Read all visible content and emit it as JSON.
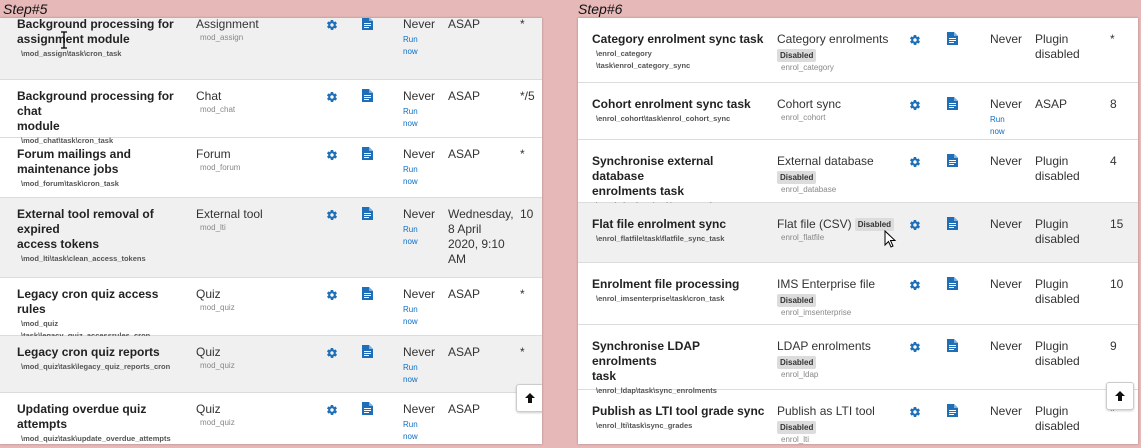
{
  "left": {
    "step": "Step#5",
    "rows": [
      {
        "name": [
          "Background processing for",
          "assignment module"
        ],
        "class": [
          "\\mod_assign\\task\\cron_task"
        ],
        "component": "Assignment",
        "comp_sub": "mod_assign",
        "last": "Never",
        "run_now": "Run now",
        "next": [
          "ASAP"
        ],
        "schedule": "*"
      },
      {
        "name": [
          "Background processing for chat",
          "module"
        ],
        "class": [
          "\\mod_chat\\task\\cron_task"
        ],
        "component": "Chat",
        "comp_sub": "mod_chat",
        "last": "Never",
        "run_now": "Run now",
        "next": [
          "ASAP"
        ],
        "schedule": "*/5"
      },
      {
        "name": [
          "Forum mailings and",
          "maintenance jobs"
        ],
        "class": [
          "\\mod_forum\\task\\cron_task"
        ],
        "component": "Forum",
        "comp_sub": "mod_forum",
        "last": "Never",
        "run_now": "Run now",
        "next": [
          "ASAP"
        ],
        "schedule": "*"
      },
      {
        "name": [
          "External tool removal of expired",
          "access tokens"
        ],
        "class": [
          "\\mod_lti\\task\\clean_access_tokens"
        ],
        "component": "External tool",
        "comp_sub": "mod_lti",
        "last": "Never",
        "run_now": "Run now",
        "next": [
          "Wednesday,",
          "8 April",
          "2020, 9:10",
          "AM"
        ],
        "schedule": "10"
      },
      {
        "name": [
          "Legacy cron quiz access rules"
        ],
        "class": [
          "\\mod_quiz",
          "\\task\\legacy_quiz_accessrules_cron"
        ],
        "component": "Quiz",
        "comp_sub": "mod_quiz",
        "last": "Never",
        "run_now": "Run now",
        "next": [
          "ASAP"
        ],
        "schedule": "*"
      },
      {
        "name": [
          "Legacy cron quiz reports"
        ],
        "class": [
          "\\mod_quiz\\task\\legacy_quiz_reports_cron"
        ],
        "component": "Quiz",
        "comp_sub": "mod_quiz",
        "last": "Never",
        "run_now": "Run now",
        "next": [
          "ASAP"
        ],
        "schedule": "*"
      },
      {
        "name": [
          "Updating overdue quiz attempts"
        ],
        "class": [
          "\\mod_quiz\\task\\update_overdue_attempts"
        ],
        "component": "Quiz",
        "comp_sub": "mod_quiz",
        "last": "Never",
        "run_now": "Run now",
        "next": [
          "ASAP"
        ],
        "schedule": "*"
      }
    ]
  },
  "right": {
    "step": "Step#6",
    "rows": [
      {
        "name": [
          "Category enrolment sync task"
        ],
        "class": [
          "\\enrol_category",
          "\\task\\enrol_category_sync"
        ],
        "component": "Category enrolments",
        "badge": "Disabled",
        "comp_sub": "enrol_category",
        "last": "Never",
        "run_now": "",
        "next": [
          "Plugin",
          "disabled"
        ],
        "schedule": "*"
      },
      {
        "name": [
          "Cohort enrolment sync task"
        ],
        "class": [
          "\\enrol_cohort\\task\\enrol_cohort_sync"
        ],
        "component": "Cohort sync",
        "badge": "",
        "comp_sub": "enrol_cohort",
        "last": "Never",
        "run_now": "Run now",
        "next": [
          "ASAP"
        ],
        "schedule": "8"
      },
      {
        "name": [
          "Synchronise external database",
          "enrolments task"
        ],
        "class": [
          "\\enrol_database\\task\\sync_enrolments"
        ],
        "component": "External database",
        "badge": "Disabled",
        "comp_sub": "enrol_database",
        "last": "Never",
        "run_now": "",
        "next": [
          "Plugin",
          "disabled"
        ],
        "schedule": "4"
      },
      {
        "name": [
          "Flat file enrolment sync"
        ],
        "class": [
          "\\enrol_flatfile\\task\\flatfile_sync_task"
        ],
        "component": "Flat file (CSV)",
        "badge_inline": "Disabled",
        "comp_sub": "enrol_flatfile",
        "last": "Never",
        "run_now": "",
        "next": [
          "Plugin",
          "disabled"
        ],
        "schedule": "15"
      },
      {
        "name": [
          "Enrolment file processing"
        ],
        "class": [
          "\\enrol_imsenterprise\\task\\cron_task"
        ],
        "component": "IMS Enterprise file",
        "badge": "Disabled",
        "comp_sub": "enrol_imsenterprise",
        "last": "Never",
        "run_now": "",
        "next": [
          "Plugin",
          "disabled"
        ],
        "schedule": "10"
      },
      {
        "name": [
          "Synchronise LDAP enrolments",
          "task"
        ],
        "class": [
          "\\enrol_ldap\\task\\sync_enrolments"
        ],
        "component": "LDAP enrolments",
        "badge": "Disabled",
        "comp_sub": "enrol_ldap",
        "last": "Never",
        "run_now": "",
        "next": [
          "Plugin",
          "disabled"
        ],
        "schedule": "9"
      },
      {
        "name": [
          "Publish as LTI tool grade sync"
        ],
        "class": [
          "\\enrol_lti\\task\\sync_grades"
        ],
        "component": "Publish as LTI tool",
        "badge": "Disabled",
        "comp_sub": "enrol_lti",
        "last": "Never",
        "run_now": "",
        "next": [
          "Plugin",
          "disabled"
        ],
        "schedule": "*"
      }
    ]
  },
  "colors": {
    "background": "#e6b8b8",
    "link": "#0f6fc5",
    "row_gray": "#f0f0f0",
    "badge": "#dcdcdc"
  },
  "icons": {
    "settings": "gear-icon",
    "logs": "document-icon",
    "back_to_top": "arrow-up-icon"
  }
}
